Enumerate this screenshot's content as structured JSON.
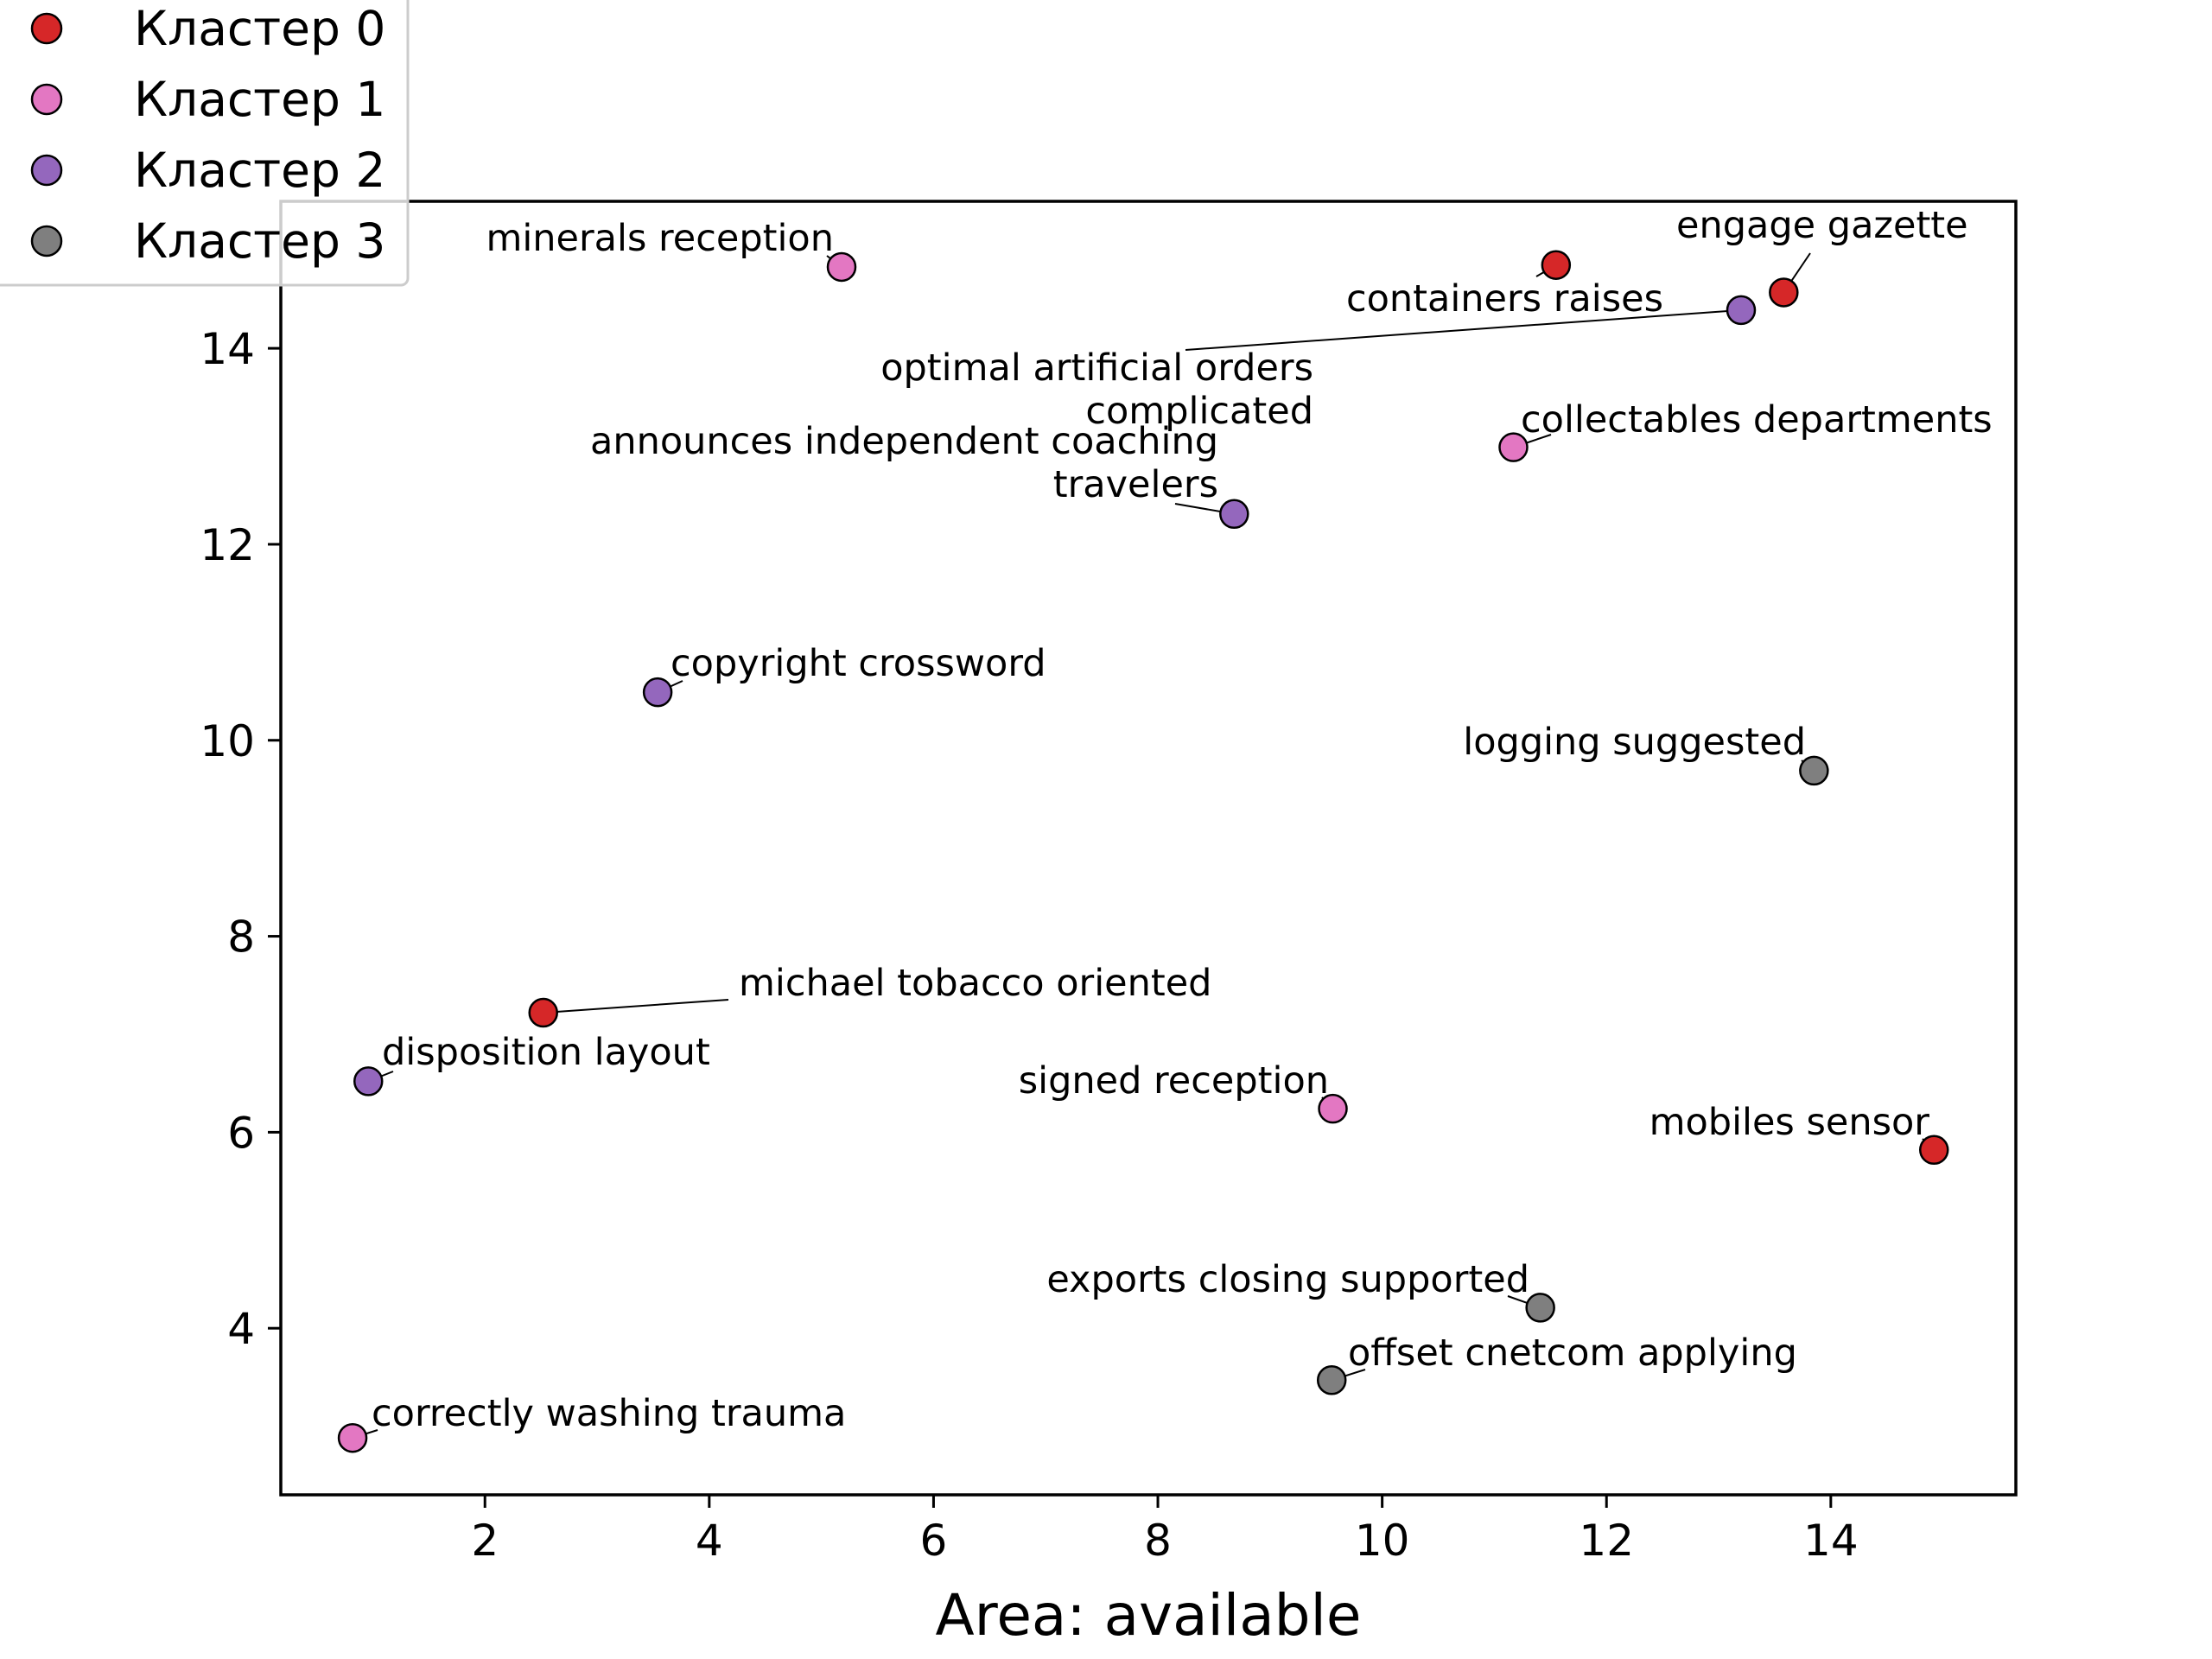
{
  "chart_data": {
    "type": "scatter",
    "title": "",
    "xlabel": "Area: available",
    "ylabel": "",
    "xlim": [
      0.18,
      15.65
    ],
    "ylim": [
      2.3,
      15.5
    ],
    "xticks": [
      2,
      4,
      6,
      8,
      10,
      12,
      14
    ],
    "yticks": [
      4,
      6,
      8,
      10,
      12,
      14
    ],
    "grid": false,
    "legend_position": "top-left",
    "series": [
      {
        "name": "Кластер 0",
        "color": "#d62728",
        "points": [
          {
            "x": 11.55,
            "y": 14.85,
            "label": "containers raises"
          },
          {
            "x": 13.58,
            "y": 14.57,
            "label": "engage gazette"
          },
          {
            "x": 2.52,
            "y": 7.22,
            "label": "michael tobacco oriented"
          },
          {
            "x": 14.92,
            "y": 5.82,
            "label": "mobiles sensor"
          }
        ]
      },
      {
        "name": "Кластер 1",
        "color": "#e377c2",
        "points": [
          {
            "x": 5.18,
            "y": 14.83,
            "label": "minerals reception"
          },
          {
            "x": 11.17,
            "y": 12.99,
            "label": "collectables departments"
          },
          {
            "x": 9.56,
            "y": 6.24,
            "label": "signed reception"
          },
          {
            "x": 0.82,
            "y": 2.88,
            "label": "correctly washing trauma"
          }
        ]
      },
      {
        "name": "Кластер 2",
        "color": "#9467bd",
        "points": [
          {
            "x": 13.2,
            "y": 14.39,
            "label": "optimal artificial orders complicated"
          },
          {
            "x": 8.68,
            "y": 12.31,
            "label": "announces independent coaching travelers"
          },
          {
            "x": 3.54,
            "y": 10.49,
            "label": "copyright crossword"
          },
          {
            "x": 0.96,
            "y": 6.52,
            "label": "disposition layout"
          }
        ]
      },
      {
        "name": "Кластер 3",
        "color": "#7f7f7f",
        "points": [
          {
            "x": 13.85,
            "y": 9.69,
            "label": "logging suggested"
          },
          {
            "x": 11.41,
            "y": 4.21,
            "label": "exports closing supported"
          },
          {
            "x": 9.55,
            "y": 3.47,
            "label": "offset cnetcom applying"
          }
        ]
      }
    ]
  }
}
